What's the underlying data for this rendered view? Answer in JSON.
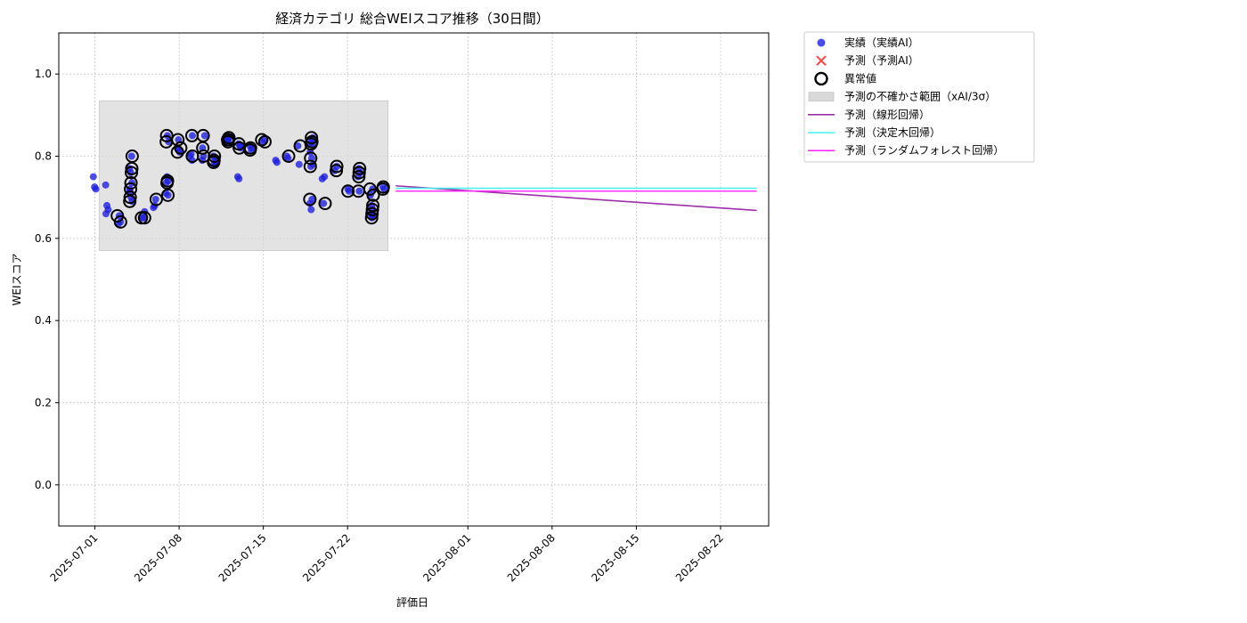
{
  "chart_data": {
    "type": "scatter",
    "title": "経済カテゴリ 総合WEIスコア推移（30日間）",
    "xlabel": "評価日",
    "ylabel": "WEIスコア",
    "xlim": [
      "2025-06-28",
      "2025-08-26"
    ],
    "ylim": [
      -0.1,
      1.1
    ],
    "x_ticks": [
      "2025-07-01",
      "2025-07-08",
      "2025-07-15",
      "2025-07-22",
      "2025-08-01",
      "2025-08-08",
      "2025-08-15",
      "2025-08-22"
    ],
    "y_ticks": [
      "0.0",
      "0.2",
      "0.4",
      "0.6",
      "0.8",
      "1.0"
    ],
    "grid": true,
    "legend_position": "outside-top-right",
    "legend": [
      "実績（実績AI）",
      "予測（予測AI）",
      "異常値",
      "予測の不確かさ範囲（xAI/3σ）",
      "予測（線形回帰）",
      "予測（決定木回帰）",
      "予測（ランダムフォレスト回帰）"
    ],
    "colors": {
      "actual": "#1f1fe0",
      "forecast_ai": "#ff4040",
      "anomaly": "#000000",
      "uncertainty": "#d9d9d9",
      "linear": "#9b30a8",
      "tree": "#40f0f0",
      "forest": "#ff30ff"
    },
    "series": [
      {
        "name": "実績（実績AI）",
        "kind": "scatter",
        "points": [
          [
            "2025-07-01",
            0.75
          ],
          [
            "2025-07-01",
            0.725
          ],
          [
            "2025-07-01",
            0.72
          ],
          [
            "2025-07-02",
            0.73
          ],
          [
            "2025-07-02",
            0.68
          ],
          [
            "2025-07-02",
            0.67
          ],
          [
            "2025-07-02",
            0.66
          ],
          [
            "2025-07-03",
            0.655
          ],
          [
            "2025-07-03",
            0.64
          ],
          [
            "2025-07-03",
            0.635
          ],
          [
            "2025-07-04",
            0.8
          ],
          [
            "2025-07-04",
            0.77
          ],
          [
            "2025-07-04",
            0.76
          ],
          [
            "2025-07-04",
            0.735
          ],
          [
            "2025-07-04",
            0.72
          ],
          [
            "2025-07-04",
            0.7
          ],
          [
            "2025-07-04",
            0.69
          ],
          [
            "2025-07-04",
            0.715
          ],
          [
            "2025-07-05",
            0.65
          ],
          [
            "2025-07-05",
            0.665
          ],
          [
            "2025-07-05",
            0.65
          ],
          [
            "2025-07-06",
            0.695
          ],
          [
            "2025-07-06",
            0.675
          ],
          [
            "2025-07-06",
            0.68
          ],
          [
            "2025-07-07",
            0.705
          ],
          [
            "2025-07-07",
            0.71
          ],
          [
            "2025-07-07",
            0.75
          ],
          [
            "2025-07-07",
            0.74
          ],
          [
            "2025-07-07",
            0.735
          ],
          [
            "2025-07-07",
            0.85
          ],
          [
            "2025-07-07",
            0.835
          ],
          [
            "2025-07-08",
            0.84
          ],
          [
            "2025-07-08",
            0.81
          ],
          [
            "2025-07-08",
            0.82
          ],
          [
            "2025-07-08",
            0.815
          ],
          [
            "2025-07-09",
            0.79
          ],
          [
            "2025-07-09",
            0.8
          ],
          [
            "2025-07-09",
            0.805
          ],
          [
            "2025-07-09",
            0.85
          ],
          [
            "2025-07-10",
            0.79
          ],
          [
            "2025-07-10",
            0.8
          ],
          [
            "2025-07-10",
            0.85
          ],
          [
            "2025-07-10",
            0.82
          ],
          [
            "2025-07-11",
            0.78
          ],
          [
            "2025-07-11",
            0.8
          ],
          [
            "2025-07-11",
            0.79
          ],
          [
            "2025-07-11",
            0.785
          ],
          [
            "2025-07-11",
            0.78
          ],
          [
            "2025-07-12",
            0.845
          ],
          [
            "2025-07-12",
            0.84
          ],
          [
            "2025-07-12",
            0.835
          ],
          [
            "2025-07-12",
            0.84
          ],
          [
            "2025-07-13",
            0.82
          ],
          [
            "2025-07-13",
            0.83
          ],
          [
            "2025-07-13",
            0.825
          ],
          [
            "2025-07-13",
            0.75
          ],
          [
            "2025-07-13",
            0.745
          ],
          [
            "2025-07-14",
            0.82
          ],
          [
            "2025-07-14",
            0.825
          ],
          [
            "2025-07-14",
            0.815
          ],
          [
            "2025-07-15",
            0.84
          ],
          [
            "2025-07-15",
            0.835
          ],
          [
            "2025-07-16",
            0.79
          ],
          [
            "2025-07-16",
            0.785
          ],
          [
            "2025-07-17",
            0.8
          ],
          [
            "2025-07-17",
            0.795
          ],
          [
            "2025-07-18",
            0.825
          ],
          [
            "2025-07-18",
            0.78
          ],
          [
            "2025-07-19",
            0.83
          ],
          [
            "2025-07-19",
            0.81
          ],
          [
            "2025-07-19",
            0.835
          ],
          [
            "2025-07-19",
            0.845
          ],
          [
            "2025-07-19",
            0.83
          ],
          [
            "2025-07-19",
            0.795
          ],
          [
            "2025-07-19",
            0.78
          ],
          [
            "2025-07-19",
            0.775
          ],
          [
            "2025-07-19",
            0.695
          ],
          [
            "2025-07-19",
            0.685
          ],
          [
            "2025-07-19",
            0.67
          ],
          [
            "2025-07-20",
            0.75
          ],
          [
            "2025-07-20",
            0.745
          ],
          [
            "2025-07-20",
            0.685
          ],
          [
            "2025-07-21",
            0.775
          ],
          [
            "2025-07-21",
            0.765
          ],
          [
            "2025-07-22",
            0.72
          ],
          [
            "2025-07-22",
            0.715
          ],
          [
            "2025-07-23",
            0.77
          ],
          [
            "2025-07-23",
            0.76
          ],
          [
            "2025-07-23",
            0.75
          ],
          [
            "2025-07-23",
            0.715
          ],
          [
            "2025-07-24",
            0.72
          ],
          [
            "2025-07-24",
            0.705
          ],
          [
            "2025-07-24",
            0.68
          ],
          [
            "2025-07-24",
            0.67
          ],
          [
            "2025-07-24",
            0.66
          ],
          [
            "2025-07-24",
            0.65
          ],
          [
            "2025-07-24",
            0.655
          ],
          [
            "2025-07-25",
            0.725
          ],
          [
            "2025-07-25",
            0.72
          ]
        ]
      },
      {
        "name": "異常値",
        "kind": "anomaly",
        "points": [
          [
            "2025-07-03",
            0.655
          ],
          [
            "2025-07-03",
            0.64
          ],
          [
            "2025-07-04",
            0.8
          ],
          [
            "2025-07-04",
            0.77
          ],
          [
            "2025-07-04",
            0.76
          ],
          [
            "2025-07-04",
            0.735
          ],
          [
            "2025-07-04",
            0.72
          ],
          [
            "2025-07-04",
            0.7
          ],
          [
            "2025-07-04",
            0.69
          ],
          [
            "2025-07-05",
            0.65
          ],
          [
            "2025-07-05",
            0.65
          ],
          [
            "2025-07-06",
            0.695
          ],
          [
            "2025-07-07",
            0.705
          ],
          [
            "2025-07-07",
            0.74
          ],
          [
            "2025-07-07",
            0.735
          ],
          [
            "2025-07-07",
            0.85
          ],
          [
            "2025-07-07",
            0.835
          ],
          [
            "2025-07-08",
            0.84
          ],
          [
            "2025-07-08",
            0.81
          ],
          [
            "2025-07-08",
            0.82
          ],
          [
            "2025-07-09",
            0.8
          ],
          [
            "2025-07-09",
            0.85
          ],
          [
            "2025-07-10",
            0.8
          ],
          [
            "2025-07-10",
            0.85
          ],
          [
            "2025-07-10",
            0.82
          ],
          [
            "2025-07-11",
            0.8
          ],
          [
            "2025-07-11",
            0.79
          ],
          [
            "2025-07-11",
            0.785
          ],
          [
            "2025-07-12",
            0.845
          ],
          [
            "2025-07-12",
            0.84
          ],
          [
            "2025-07-12",
            0.835
          ],
          [
            "2025-07-12",
            0.84
          ],
          [
            "2025-07-13",
            0.82
          ],
          [
            "2025-07-13",
            0.83
          ],
          [
            "2025-07-14",
            0.82
          ],
          [
            "2025-07-14",
            0.815
          ],
          [
            "2025-07-15",
            0.84
          ],
          [
            "2025-07-15",
            0.835
          ],
          [
            "2025-07-17",
            0.8
          ],
          [
            "2025-07-18",
            0.825
          ],
          [
            "2025-07-19",
            0.835
          ],
          [
            "2025-07-19",
            0.845
          ],
          [
            "2025-07-19",
            0.83
          ],
          [
            "2025-07-19",
            0.795
          ],
          [
            "2025-07-19",
            0.775
          ],
          [
            "2025-07-19",
            0.695
          ],
          [
            "2025-07-20",
            0.685
          ],
          [
            "2025-07-21",
            0.775
          ],
          [
            "2025-07-21",
            0.765
          ],
          [
            "2025-07-22",
            0.715
          ],
          [
            "2025-07-23",
            0.77
          ],
          [
            "2025-07-23",
            0.76
          ],
          [
            "2025-07-23",
            0.75
          ],
          [
            "2025-07-23",
            0.715
          ],
          [
            "2025-07-24",
            0.72
          ],
          [
            "2025-07-24",
            0.705
          ],
          [
            "2025-07-24",
            0.68
          ],
          [
            "2025-07-24",
            0.67
          ],
          [
            "2025-07-24",
            0.66
          ],
          [
            "2025-07-24",
            0.65
          ],
          [
            "2025-07-25",
            0.725
          ],
          [
            "2025-07-25",
            0.72
          ]
        ]
      },
      {
        "name": "予測の不確かさ範囲（xAI/3σ）",
        "kind": "band",
        "x_start": "2025-07-01",
        "x_end": "2025-07-25",
        "y_low": 0.57,
        "y_high": 0.935
      },
      {
        "name": "予測（線形回帰）",
        "kind": "line",
        "points": [
          [
            "2025-07-26",
            0.728
          ],
          [
            "2025-08-25",
            0.668
          ]
        ]
      },
      {
        "name": "予測（決定木回帰）",
        "kind": "line",
        "points": [
          [
            "2025-07-26",
            0.722
          ],
          [
            "2025-08-25",
            0.722
          ]
        ]
      },
      {
        "name": "予測（ランダムフォレスト回帰）",
        "kind": "line",
        "points": [
          [
            "2025-07-26",
            0.715
          ],
          [
            "2025-08-25",
            0.715
          ]
        ]
      }
    ]
  }
}
